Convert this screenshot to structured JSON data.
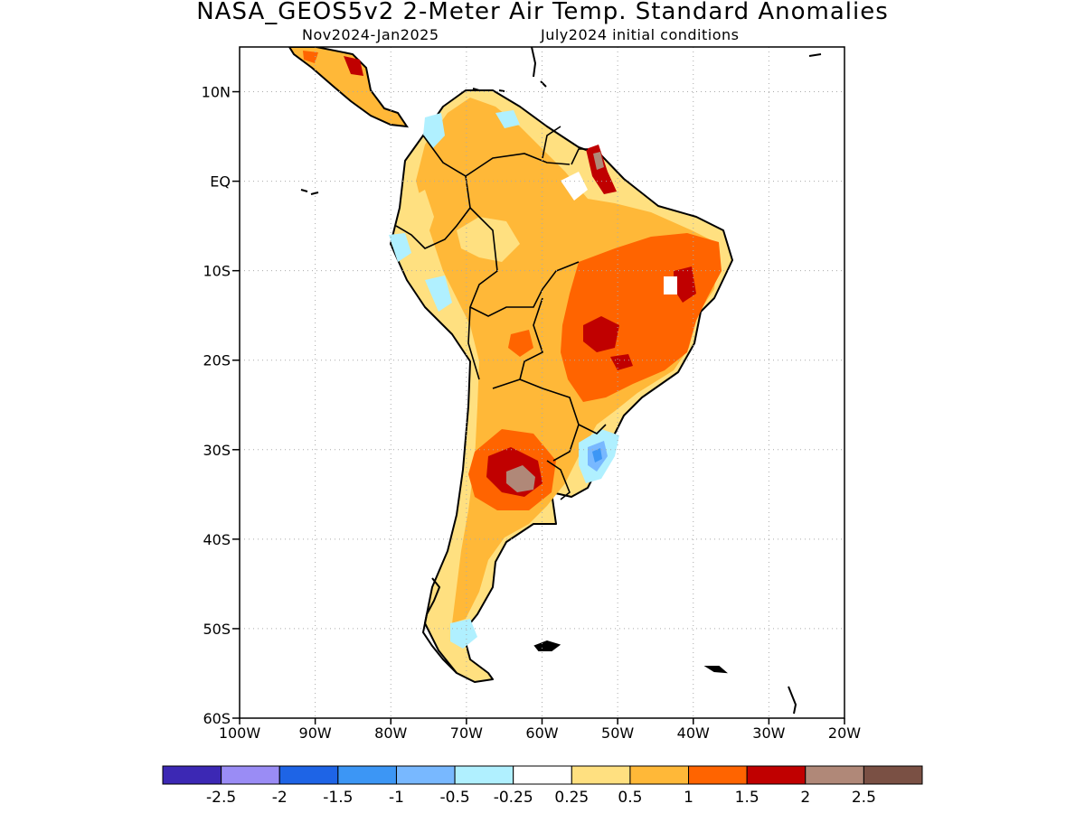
{
  "title": "NASA_GEOS5v2 2-Meter Air Temp. Standard Anomalies",
  "subtitle_period": "Nov2024-Jan2025",
  "subtitle_init": "July2024 initial conditions",
  "map": {
    "lon_range": [
      -100,
      -20
    ],
    "lat_range": [
      -60,
      15
    ],
    "grid": "dotted",
    "lat_ticks": [
      {
        "value": 10,
        "label": "10N"
      },
      {
        "value": 0,
        "label": "EQ"
      },
      {
        "value": -10,
        "label": "10S"
      },
      {
        "value": -20,
        "label": "20S"
      },
      {
        "value": -30,
        "label": "30S"
      },
      {
        "value": -40,
        "label": "40S"
      },
      {
        "value": -50,
        "label": "50S"
      },
      {
        "value": -60,
        "label": "60S"
      }
    ],
    "lon_ticks": [
      {
        "value": -100,
        "label": "100W"
      },
      {
        "value": -90,
        "label": "90W"
      },
      {
        "value": -80,
        "label": "80W"
      },
      {
        "value": -70,
        "label": "70W"
      },
      {
        "value": -60,
        "label": "60W"
      },
      {
        "value": -50,
        "label": "50W"
      },
      {
        "value": -40,
        "label": "40W"
      },
      {
        "value": -30,
        "label": "30W"
      },
      {
        "value": -20,
        "label": "20W"
      }
    ],
    "anomaly_regions": [
      {
        "level": "0.25-0.5",
        "color": "#ffe080",
        "note": "continental background"
      },
      {
        "level": "0.5-1",
        "color": "#ffb838",
        "note": "most of the continent"
      },
      {
        "level": "1-1.5",
        "color": "#ff6400",
        "note": "central and eastern Brazil; central Argentina"
      },
      {
        "level": "1.5-2",
        "color": "#c00000",
        "note": "central Brazil; central Argentina; northern Brazil coast"
      },
      {
        "level": "2-2.5",
        "color": "#b08878",
        "note": "central Argentina; northern Brazil coast"
      },
      {
        "level": "-1.5--0.25",
        "color": "#78b8ff",
        "note": "southern Brazil coast"
      }
    ]
  },
  "colorbar": {
    "colors": [
      "#3c28b4",
      "#9a8cf5",
      "#1e64e6",
      "#3c96f5",
      "#78b8ff",
      "#b0f0ff",
      "#ffffff",
      "#ffe080",
      "#ffb838",
      "#ff6400",
      "#c00000",
      "#b08878",
      "#7a5044"
    ],
    "labels": [
      "-2.5",
      "-2",
      "-1.5",
      "-1",
      "-0.5",
      "-0.25",
      "0.25",
      "0.5",
      "1",
      "1.5",
      "2",
      "2.5"
    ]
  }
}
